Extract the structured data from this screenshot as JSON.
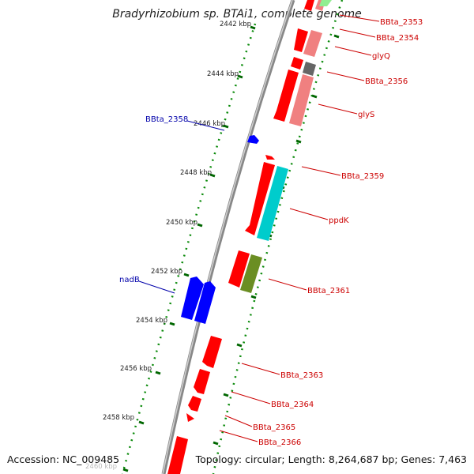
{
  "title": "Bradyrhizobium sp. BTAi1, complete genome",
  "accession": "Accession: NC_009485",
  "topology": "Topology: circular; Length: 8,264,687 bp; Genes: 7,463",
  "ticks": [
    "2442 kbp",
    "2444 kbp",
    "2446 kbp",
    "2448 kbp",
    "2450 kbp",
    "2452 kbp",
    "2454 kbp",
    "2456 kbp",
    "2458 kbp",
    "2460 kbp"
  ],
  "gene_labels": [
    {
      "text": "BBta_2353",
      "strand": "forward"
    },
    {
      "text": "BBta_2354",
      "strand": "forward"
    },
    {
      "text": "glyQ",
      "strand": "forward"
    },
    {
      "text": "BBta_2356",
      "strand": "forward"
    },
    {
      "text": "glyS",
      "strand": "forward"
    },
    {
      "text": "BBta_2358",
      "strand": "reverse"
    },
    {
      "text": "BBta_2359",
      "strand": "forward"
    },
    {
      "text": "ppdK",
      "strand": "forward"
    },
    {
      "text": "nadB",
      "strand": "reverse"
    },
    {
      "text": "BBta_2361",
      "strand": "forward"
    },
    {
      "text": "BBta_2363",
      "strand": "forward"
    },
    {
      "text": "BBta_2364",
      "strand": "forward"
    },
    {
      "text": "BBta_2365",
      "strand": "forward"
    },
    {
      "text": "BBta_2366",
      "strand": "forward"
    }
  ],
  "colors": {
    "forward_label": "#cc0000",
    "reverse_label": "#0000aa",
    "cds_forward": "#ff0000",
    "cds_reverse": "#0000ff",
    "trna": "#f08080",
    "rrna_like": "#00cccc",
    "olive": "#6b8e23",
    "light_green": "#90ee90",
    "grey": "#666666",
    "tick": "#006600",
    "backbone": "#888888"
  }
}
